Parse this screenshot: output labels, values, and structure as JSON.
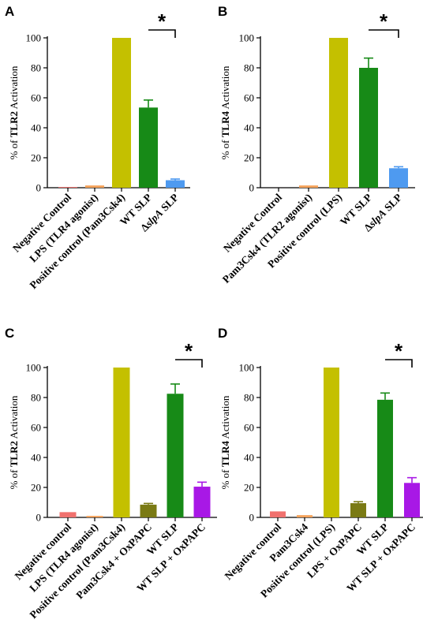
{
  "chart_data": [
    {
      "panel": "A",
      "type": "bar",
      "ylabel_prefix": "% of ",
      "ylabel_receptor": "TLR2",
      "ylabel_suffix": " Activation",
      "ylim": [
        0,
        100
      ],
      "yticks": [
        "0",
        "20",
        "40",
        "60",
        "80",
        "100"
      ],
      "categories": [
        "Negative Control",
        "LPS (TLR4 agonist)",
        "Positive control (Pam3Csk4)",
        "WT SLP",
        "ΔslpA SLP"
      ],
      "values": [
        0.5,
        1.5,
        100,
        53.5,
        5
      ],
      "errors": [
        0,
        0,
        0,
        5,
        0.8
      ],
      "colors": [
        "#f0716e",
        "#f5a25a",
        "#c4c000",
        "#178a17",
        "#4e9af0"
      ],
      "significance": "*"
    },
    {
      "panel": "B",
      "type": "bar",
      "ylabel_prefix": "% of ",
      "ylabel_receptor": "TLR4",
      "ylabel_suffix": " Activation",
      "ylim": [
        0,
        100
      ],
      "yticks": [
        "0",
        "20",
        "40",
        "60",
        "80",
        "100"
      ],
      "categories": [
        "Negative Control",
        "Pam3Csk4 (TLR2 agonist)",
        "Positive control (LPS)",
        "WT SLP",
        "ΔslpA SLP"
      ],
      "values": [
        0,
        1.5,
        100,
        80,
        13
      ],
      "errors": [
        0,
        0,
        0,
        6.5,
        1
      ],
      "colors": [
        "#f0716e",
        "#f5a25a",
        "#c4c000",
        "#178a17",
        "#4e9af0"
      ],
      "significance": "*"
    },
    {
      "panel": "C",
      "type": "bar",
      "ylabel_prefix": "% of ",
      "ylabel_receptor": "TLR2",
      "ylabel_suffix": " Activation",
      "ylim": [
        0,
        100
      ],
      "yticks": [
        "0",
        "20",
        "40",
        "60",
        "80",
        "100"
      ],
      "categories": [
        "Negative control",
        "LPS (TLR4 agonist)",
        "Positive control (Pam3Csk4)",
        "Pam3Csk4 + OxPAPC",
        "WT SLP",
        "WT SLP + OxPAPC"
      ],
      "values": [
        3.5,
        1,
        100,
        8.5,
        82.5,
        20.5
      ],
      "errors": [
        0,
        0,
        0,
        0.8,
        6.5,
        3
      ],
      "colors": [
        "#f0716e",
        "#f5a25a",
        "#c4c000",
        "#7a7a14",
        "#178a17",
        "#a818e6"
      ],
      "significance": "*"
    },
    {
      "panel": "D",
      "type": "bar",
      "ylabel_prefix": "% of ",
      "ylabel_receptor": "TLR4",
      "ylabel_suffix": " Activation",
      "ylim": [
        0,
        100
      ],
      "yticks": [
        "0",
        "20",
        "40",
        "60",
        "80",
        "100"
      ],
      "categories": [
        "Negative control",
        "Pam3Csk4",
        "Positive control (LPS)",
        "LPS + OxPAPC",
        "WT SLP",
        "WT SLP + OxPAPC"
      ],
      "values": [
        4,
        1.5,
        100,
        9.5,
        78.5,
        23
      ],
      "errors": [
        0,
        0,
        0,
        1,
        4.5,
        3.5
      ],
      "colors": [
        "#f0716e",
        "#f5a25a",
        "#c4c000",
        "#7a7a14",
        "#178a17",
        "#a818e6"
      ],
      "significance": "*"
    }
  ]
}
